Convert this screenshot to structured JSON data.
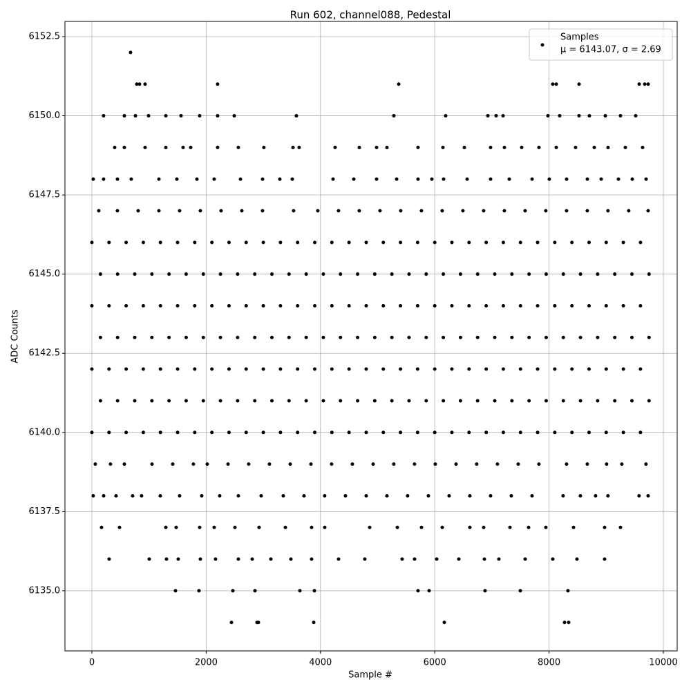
{
  "chart_data": {
    "type": "scatter",
    "title": "Run 602, channel088, Pedestal",
    "x_label": "Sample #",
    "y_label": "ADC Counts",
    "annotation": "μ = 6143.07, σ = 2.69",
    "xlim": [
      -471,
      10242
    ],
    "ylim": [
      6133.1,
      6152.98
    ],
    "xticks": [
      0,
      2000,
      4000,
      6000,
      8000,
      10000
    ],
    "yticks": [
      {
        "value": 6135,
        "label": "6135.0"
      },
      6137.5,
      {
        "value": 6140,
        "label": "6140.0"
      },
      6142.5,
      {
        "value": 6145,
        "label": "6145.0"
      },
      6147.5,
      {
        "value": 6150,
        "label": "6150.0"
      },
      6152.5
    ],
    "grid": true,
    "legend": "upper right",
    "x": [
      677,
      786,
      834,
      931,
      2200,
      5369,
      8065,
      8126,
      8525,
      9577,
      9674,
      9734,
      205,
      568,
      762,
      992,
      1294,
      1560,
      1886,
      2200,
      2491,
      3579,
      5284,
      6191,
      6929,
      7074,
      7195,
      7981,
      8186,
      8525,
      8706,
      8984,
      9250,
      9516,
      399,
      568,
      931,
      1294,
      1596,
      1729,
      2200,
      2563,
      3010,
      3519,
      3627,
      4256,
      4680,
      4982,
      5163,
      5707,
      6143,
      6518,
      6977,
      7219,
      7521,
      7823,
      8126,
      8464,
      8791,
      9032,
      9335,
      9637,
      24,
      205,
      447,
      689,
      1173,
      1487,
      1838,
      2140,
      2600,
      2987,
      3289,
      3507,
      4220,
      4583,
      4982,
      5333,
      5707,
      5949,
      6155,
      6566,
      6977,
      7304,
      7703,
      8004,
      8307,
      8670,
      8912,
      9214,
      9456,
      9698,
      121,
      447,
      810,
      1173,
      1535,
      1898,
      2261,
      2624,
      2986,
      3530,
      3953,
      4316,
      4679,
      5042,
      5404,
      5767,
      6130,
      6493,
      6855,
      7218,
      7581,
      7943,
      8306,
      8669,
      9031,
      9394,
      9733,
      0,
      300,
      600,
      900,
      1200,
      1500,
      1800,
      2100,
      2400,
      2700,
      3000,
      3300,
      3600,
      3900,
      4200,
      4500,
      4800,
      5100,
      5400,
      5700,
      6000,
      6300,
      6600,
      6900,
      7200,
      7500,
      7800,
      8100,
      8400,
      8700,
      9000,
      9300,
      9600,
      150,
      450,
      750,
      1050,
      1350,
      1650,
      1950,
      2250,
      2550,
      2850,
      3150,
      3450,
      3750,
      4050,
      4350,
      4650,
      4950,
      5250,
      5550,
      5850,
      6150,
      6450,
      6750,
      7050,
      7350,
      7650,
      7950,
      8250,
      8550,
      8850,
      9150,
      9450,
      9750,
      0,
      300,
      600,
      900,
      1200,
      1500,
      1800,
      2100,
      2400,
      2700,
      3000,
      3300,
      3600,
      3900,
      4200,
      4500,
      4800,
      5100,
      5400,
      5700,
      6000,
      6300,
      6600,
      6900,
      7200,
      7500,
      7800,
      8100,
      8400,
      8700,
      9000,
      9300,
      9600,
      150,
      450,
      750,
      1050,
      1350,
      1650,
      1950,
      2250,
      2550,
      2850,
      3150,
      3450,
      3750,
      4050,
      4350,
      4650,
      4950,
      5250,
      5550,
      5850,
      6150,
      6450,
      6750,
      7050,
      7350,
      7650,
      7950,
      8250,
      8550,
      8850,
      9150,
      9450,
      9750,
      0,
      300,
      600,
      900,
      1200,
      1500,
      1800,
      2100,
      2400,
      2700,
      3000,
      3300,
      3600,
      3900,
      4200,
      4500,
      4800,
      5100,
      5400,
      5700,
      6000,
      6300,
      6600,
      6900,
      7200,
      7500,
      7800,
      8100,
      8400,
      8700,
      9000,
      9300,
      9600,
      150,
      450,
      750,
      1050,
      1350,
      1650,
      1950,
      2250,
      2550,
      2850,
      3150,
      3450,
      3750,
      4050,
      4350,
      4650,
      4950,
      5250,
      5550,
      5850,
      6150,
      6450,
      6750,
      7050,
      7350,
      7650,
      7950,
      8250,
      8550,
      8850,
      9150,
      9450,
      9750,
      0,
      300,
      600,
      900,
      1200,
      1500,
      1800,
      2100,
      2400,
      2700,
      3000,
      3300,
      3600,
      3900,
      4200,
      4500,
      4800,
      5100,
      5400,
      5700,
      6000,
      6300,
      6600,
      6900,
      7200,
      7500,
      7800,
      8100,
      8400,
      8700,
      9000,
      9300,
      9600,
      60,
      326,
      568,
      1052,
      1415,
      1777,
      2019,
      2382,
      2744,
      3107,
      3470,
      3833,
      4195,
      4558,
      4921,
      5283,
      5646,
      6009,
      6372,
      6734,
      7097,
      7460,
      7822,
      8306,
      8669,
      9007,
      9273,
      9696,
      24,
      206,
      423,
      713,
      870,
      1197,
      1535,
      1922,
      2237,
      2563,
      2962,
      3349,
      3712,
      4074,
      4437,
      4800,
      5163,
      5525,
      5888,
      6251,
      6614,
      6977,
      7339,
      7702,
      8246,
      8548,
      8814,
      9031,
      9575,
      9733,
      169,
      484,
      1294,
      1475,
      1886,
      2140,
      2503,
      2926,
      3386,
      3845,
      4075,
      4861,
      5345,
      5768,
      6131,
      6614,
      6856,
      7316,
      7642,
      7944,
      8428,
      8972,
      9250,
      302,
      1004,
      1306,
      1511,
      1898,
      2164,
      2563,
      2805,
      3132,
      3482,
      3845,
      4317,
      4776,
      5429,
      5647,
      6034,
      6421,
      6868,
      7122,
      7582,
      8065,
      8488,
      8972,
      1463,
      1874,
      2467,
      2854,
      3640,
      3894,
      5707,
      5901,
      6880,
      7497,
      8331,
      2443,
      2890,
      2914,
      3882,
      6167,
      8271,
      8343
    ],
    "series": [
      {
        "name": "Samples",
        "color": "#000000",
        "values": [
          6152,
          6151,
          6151,
          6151,
          6151,
          6151,
          6151,
          6151,
          6151,
          6151,
          6151,
          6151,
          6150,
          6150,
          6150,
          6150,
          6150,
          6150,
          6150,
          6150,
          6150,
          6150,
          6150,
          6150,
          6150,
          6150,
          6150,
          6150,
          6150,
          6150,
          6150,
          6150,
          6150,
          6150,
          6149,
          6149,
          6149,
          6149,
          6149,
          6149,
          6149,
          6149,
          6149,
          6149,
          6149,
          6149,
          6149,
          6149,
          6149,
          6149,
          6149,
          6149,
          6149,
          6149,
          6149,
          6149,
          6149,
          6149,
          6149,
          6149,
          6149,
          6149,
          6148,
          6148,
          6148,
          6148,
          6148,
          6148,
          6148,
          6148,
          6148,
          6148,
          6148,
          6148,
          6148,
          6148,
          6148,
          6148,
          6148,
          6148,
          6148,
          6148,
          6148,
          6148,
          6148,
          6148,
          6148,
          6148,
          6148,
          6148,
          6148,
          6148,
          6147,
          6147,
          6147,
          6147,
          6147,
          6147,
          6147,
          6147,
          6147,
          6147,
          6147,
          6147,
          6147,
          6147,
          6147,
          6147,
          6147,
          6147,
          6147,
          6147,
          6147,
          6147,
          6147,
          6147,
          6147,
          6147,
          6147,
          6146,
          6146,
          6146,
          6146,
          6146,
          6146,
          6146,
          6146,
          6146,
          6146,
          6146,
          6146,
          6146,
          6146,
          6146,
          6146,
          6146,
          6146,
          6146,
          6146,
          6146,
          6146,
          6146,
          6146,
          6146,
          6146,
          6146,
          6146,
          6146,
          6146,
          6146,
          6146,
          6146,
          6145,
          6145,
          6145,
          6145,
          6145,
          6145,
          6145,
          6145,
          6145,
          6145,
          6145,
          6145,
          6145,
          6145,
          6145,
          6145,
          6145,
          6145,
          6145,
          6145,
          6145,
          6145,
          6145,
          6145,
          6145,
          6145,
          6145,
          6145,
          6145,
          6145,
          6145,
          6145,
          6145,
          6144,
          6144,
          6144,
          6144,
          6144,
          6144,
          6144,
          6144,
          6144,
          6144,
          6144,
          6144,
          6144,
          6144,
          6144,
          6144,
          6144,
          6144,
          6144,
          6144,
          6144,
          6144,
          6144,
          6144,
          6144,
          6144,
          6144,
          6144,
          6144,
          6144,
          6144,
          6144,
          6144,
          6143,
          6143,
          6143,
          6143,
          6143,
          6143,
          6143,
          6143,
          6143,
          6143,
          6143,
          6143,
          6143,
          6143,
          6143,
          6143,
          6143,
          6143,
          6143,
          6143,
          6143,
          6143,
          6143,
          6143,
          6143,
          6143,
          6143,
          6143,
          6143,
          6143,
          6143,
          6143,
          6143,
          6142,
          6142,
          6142,
          6142,
          6142,
          6142,
          6142,
          6142,
          6142,
          6142,
          6142,
          6142,
          6142,
          6142,
          6142,
          6142,
          6142,
          6142,
          6142,
          6142,
          6142,
          6142,
          6142,
          6142,
          6142,
          6142,
          6142,
          6142,
          6142,
          6142,
          6142,
          6142,
          6142,
          6141,
          6141,
          6141,
          6141,
          6141,
          6141,
          6141,
          6141,
          6141,
          6141,
          6141,
          6141,
          6141,
          6141,
          6141,
          6141,
          6141,
          6141,
          6141,
          6141,
          6141,
          6141,
          6141,
          6141,
          6141,
          6141,
          6141,
          6141,
          6141,
          6141,
          6141,
          6141,
          6141,
          6140,
          6140,
          6140,
          6140,
          6140,
          6140,
          6140,
          6140,
          6140,
          6140,
          6140,
          6140,
          6140,
          6140,
          6140,
          6140,
          6140,
          6140,
          6140,
          6140,
          6140,
          6140,
          6140,
          6140,
          6140,
          6140,
          6140,
          6140,
          6140,
          6140,
          6140,
          6140,
          6140,
          6139,
          6139,
          6139,
          6139,
          6139,
          6139,
          6139,
          6139,
          6139,
          6139,
          6139,
          6139,
          6139,
          6139,
          6139,
          6139,
          6139,
          6139,
          6139,
          6139,
          6139,
          6139,
          6139,
          6139,
          6139,
          6139,
          6139,
          6139,
          6138,
          6138,
          6138,
          6138,
          6138,
          6138,
          6138,
          6138,
          6138,
          6138,
          6138,
          6138,
          6138,
          6138,
          6138,
          6138,
          6138,
          6138,
          6138,
          6138,
          6138,
          6138,
          6138,
          6138,
          6138,
          6138,
          6138,
          6138,
          6138,
          6138,
          6137,
          6137,
          6137,
          6137,
          6137,
          6137,
          6137,
          6137,
          6137,
          6137,
          6137,
          6137,
          6137,
          6137,
          6137,
          6137,
          6137,
          6137,
          6137,
          6137,
          6137,
          6137,
          6137,
          6136,
          6136,
          6136,
          6136,
          6136,
          6136,
          6136,
          6136,
          6136,
          6136,
          6136,
          6136,
          6136,
          6136,
          6136,
          6136,
          6136,
          6136,
          6136,
          6136,
          6136,
          6136,
          6136,
          6135,
          6135,
          6135,
          6135,
          6135,
          6135,
          6135,
          6135,
          6135,
          6135,
          6135,
          6134,
          6134,
          6134,
          6134,
          6134,
          6134,
          6134
        ]
      }
    ]
  }
}
